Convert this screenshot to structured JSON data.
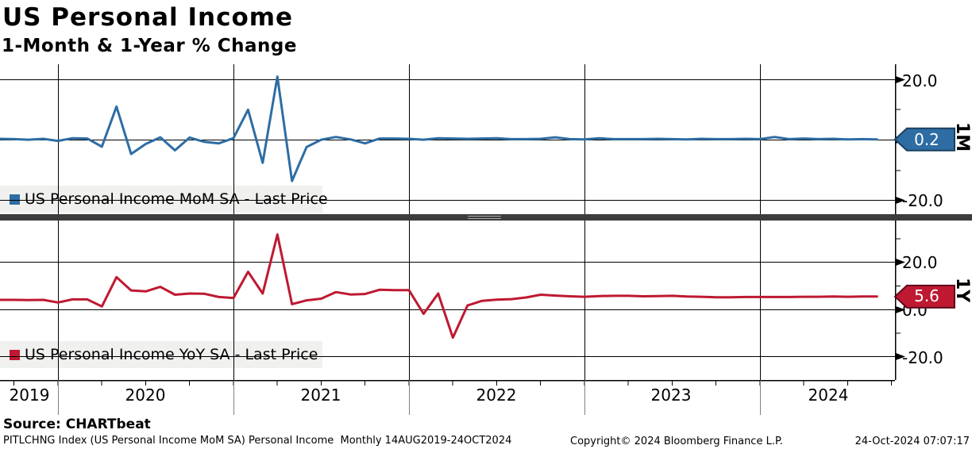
{
  "header": {
    "title": "US Personal Income",
    "subtitle": "1-Month & 1-Year % Change"
  },
  "panels": {
    "top": {
      "axis_label": "1M",
      "legend": "US Personal Income MoM SA - Last Price",
      "last_price": "0.2",
      "tick_labels": [
        "20.0",
        "-20.0"
      ]
    },
    "bottom": {
      "axis_label": "1Y",
      "legend": "US Personal Income YoY SA - Last Price",
      "last_price": "5.6",
      "tick_labels": [
        "20.0",
        "0.0",
        "-20.0"
      ]
    }
  },
  "x_axis": {
    "years": [
      "2019",
      "2020",
      "2021",
      "2022",
      "2023",
      "2024"
    ]
  },
  "footer": {
    "source": "Source: CHARTbeat",
    "description": "PITLCHNG Index (US Personal Income MoM SA) Personal Income  Monthly 14AUG2019-24OCT2024",
    "copyright": "Copyright© 2024 Bloomberg Finance L.P.",
    "timestamp": "24-Oct-2024 07:07:17"
  },
  "colors": {
    "mom_blue": "#2e6da4",
    "mom_blue_border": "#1b4060",
    "yoy_red": "#be1931",
    "yoy_red_border": "#600a1c",
    "grid": "#000000",
    "separator": "#3d3d3d",
    "legend_bg": "#f0f0ef"
  },
  "chart_data": {
    "type": "line",
    "title": "US Personal Income",
    "subtitle": "1-Month & 1-Year % Change",
    "frequency": "Monthly",
    "date_range": "14AUG2019-24OCT2024",
    "x_tick_labels": [
      "2019",
      "2020",
      "2021",
      "2022",
      "2023",
      "2024"
    ],
    "grid": true,
    "legend_position": "bottom-left-inside",
    "categories": [
      "Aug-2019",
      "Sep-2019",
      "Oct-2019",
      "Nov-2019",
      "Dec-2019",
      "Jan-2020",
      "Feb-2020",
      "Mar-2020",
      "Apr-2020",
      "May-2020",
      "Jun-2020",
      "Jul-2020",
      "Aug-2020",
      "Sep-2020",
      "Oct-2020",
      "Nov-2020",
      "Dec-2020",
      "Jan-2021",
      "Feb-2021",
      "Mar-2021",
      "Apr-2021",
      "May-2021",
      "Jun-2021",
      "Jul-2021",
      "Aug-2021",
      "Sep-2021",
      "Oct-2021",
      "Nov-2021",
      "Dec-2021",
      "Jan-2022",
      "Feb-2022",
      "Mar-2022",
      "Apr-2022",
      "May-2022",
      "Jun-2022",
      "Jul-2022",
      "Aug-2022",
      "Sep-2022",
      "Oct-2022",
      "Nov-2022",
      "Dec-2022",
      "Jan-2023",
      "Feb-2023",
      "Mar-2023",
      "Apr-2023",
      "May-2023",
      "Jun-2023",
      "Jul-2023",
      "Aug-2023",
      "Sep-2023",
      "Oct-2023",
      "Nov-2023",
      "Dec-2023",
      "Jan-2024",
      "Feb-2024",
      "Mar-2024",
      "Apr-2024",
      "May-2024",
      "Jun-2024",
      "Jul-2024",
      "Aug-2024"
    ],
    "series": [
      {
        "name": "US Personal Income MoM SA - Last Price",
        "panel": "1M",
        "color": "#2e6da4",
        "border": "#1b4060",
        "last_price": 0.2,
        "ylim": [
          -25,
          25
        ],
        "yticks": [
          -20,
          -10,
          0,
          10,
          20
        ],
        "values": [
          0.4,
          0.3,
          0.1,
          0.4,
          -0.3,
          0.6,
          0.5,
          -2.2,
          11.0,
          -4.6,
          -1.3,
          0.9,
          -3.4,
          0.8,
          -0.6,
          -1.1,
          0.6,
          10.0,
          -7.5,
          20.9,
          -13.5,
          -2.3,
          0.1,
          1.0,
          0.2,
          -1.1,
          0.5,
          0.5,
          0.4,
          0.1,
          0.6,
          0.5,
          0.4,
          0.5,
          0.6,
          0.3,
          0.3,
          0.4,
          0.9,
          0.3,
          0.2,
          0.6,
          0.3,
          0.3,
          0.3,
          0.4,
          0.3,
          0.2,
          0.4,
          0.3,
          0.3,
          0.4,
          0.3,
          1.0,
          0.3,
          0.5,
          0.3,
          0.4,
          0.2,
          0.3,
          0.2
        ]
      },
      {
        "name": "US Personal Income YoY SA - Last Price",
        "panel": "1Y",
        "color": "#be1931",
        "border": "#600a1c",
        "last_price": 5.6,
        "ylim": [
          -30,
          37
        ],
        "yticks": [
          -20,
          -10,
          0,
          10,
          20,
          30
        ],
        "values": [
          4.2,
          4.2,
          4.1,
          4.2,
          3.1,
          4.4,
          4.4,
          1.4,
          13.8,
          8.2,
          7.8,
          9.7,
          6.4,
          6.9,
          6.8,
          5.4,
          5.0,
          16.1,
          6.9,
          31.9,
          2.4,
          4.0,
          4.7,
          7.5,
          6.5,
          6.7,
          8.5,
          8.3,
          8.3,
          -1.7,
          6.9,
          -11.8,
          1.8,
          3.8,
          4.3,
          4.5,
          5.2,
          6.4,
          6.0,
          5.7,
          5.5,
          5.8,
          5.9,
          5.9,
          5.7,
          5.8,
          5.9,
          5.6,
          5.5,
          5.3,
          5.3,
          5.4,
          5.4,
          5.4,
          5.4,
          5.5,
          5.5,
          5.6,
          5.5,
          5.6,
          5.6
        ]
      }
    ]
  }
}
